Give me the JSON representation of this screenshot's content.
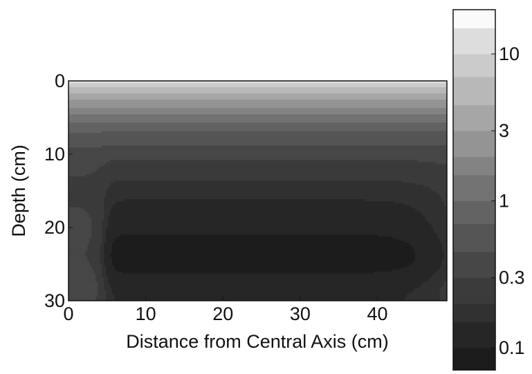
{
  "chart_data": {
    "type": "heatmap",
    "subtype": "filled-contour",
    "title": "",
    "xlabel": "Distance from Central Axis (cm)",
    "ylabel": "Depth (cm)",
    "xlim": [
      0,
      49
    ],
    "ylim": [
      0,
      30
    ],
    "y_reversed": true,
    "x_ticks": [
      "0",
      "10",
      "20",
      "30",
      "40"
    ],
    "x_tick_values": [
      0,
      10,
      20,
      30,
      40
    ],
    "y_ticks": [
      "0",
      "10",
      "20",
      "30"
    ],
    "y_tick_values": [
      0,
      10,
      20,
      30
    ],
    "colorbar": {
      "scale": "log",
      "range": [
        0.07,
        20
      ],
      "levels": [
        0.07,
        0.1,
        0.15,
        0.2,
        0.3,
        0.45,
        0.7,
        1,
        1.5,
        2,
        3,
        4.5,
        7,
        10,
        15,
        20
      ],
      "tick_labels": [
        "10",
        "3",
        "1",
        "0.3",
        "0.1"
      ],
      "tick_values": [
        10,
        3,
        1,
        0.3,
        0.1
      ],
      "colors": [
        "#1c1c1c",
        "#262626",
        "#313131",
        "#3b3b3b",
        "#474747",
        "#555555",
        "#636363",
        "#737373",
        "#838383",
        "#949494",
        "#a6a6a6",
        "#b8b8b8",
        "#cbcbcb",
        "#dddddd",
        "#fafafa"
      ]
    },
    "field_model": {
      "surface_value": 12,
      "min_value": 0.07,
      "min_depth": 24,
      "depth_scale": 8.5,
      "edge_start_x": 4.5,
      "edge_end_x": 49
    }
  }
}
